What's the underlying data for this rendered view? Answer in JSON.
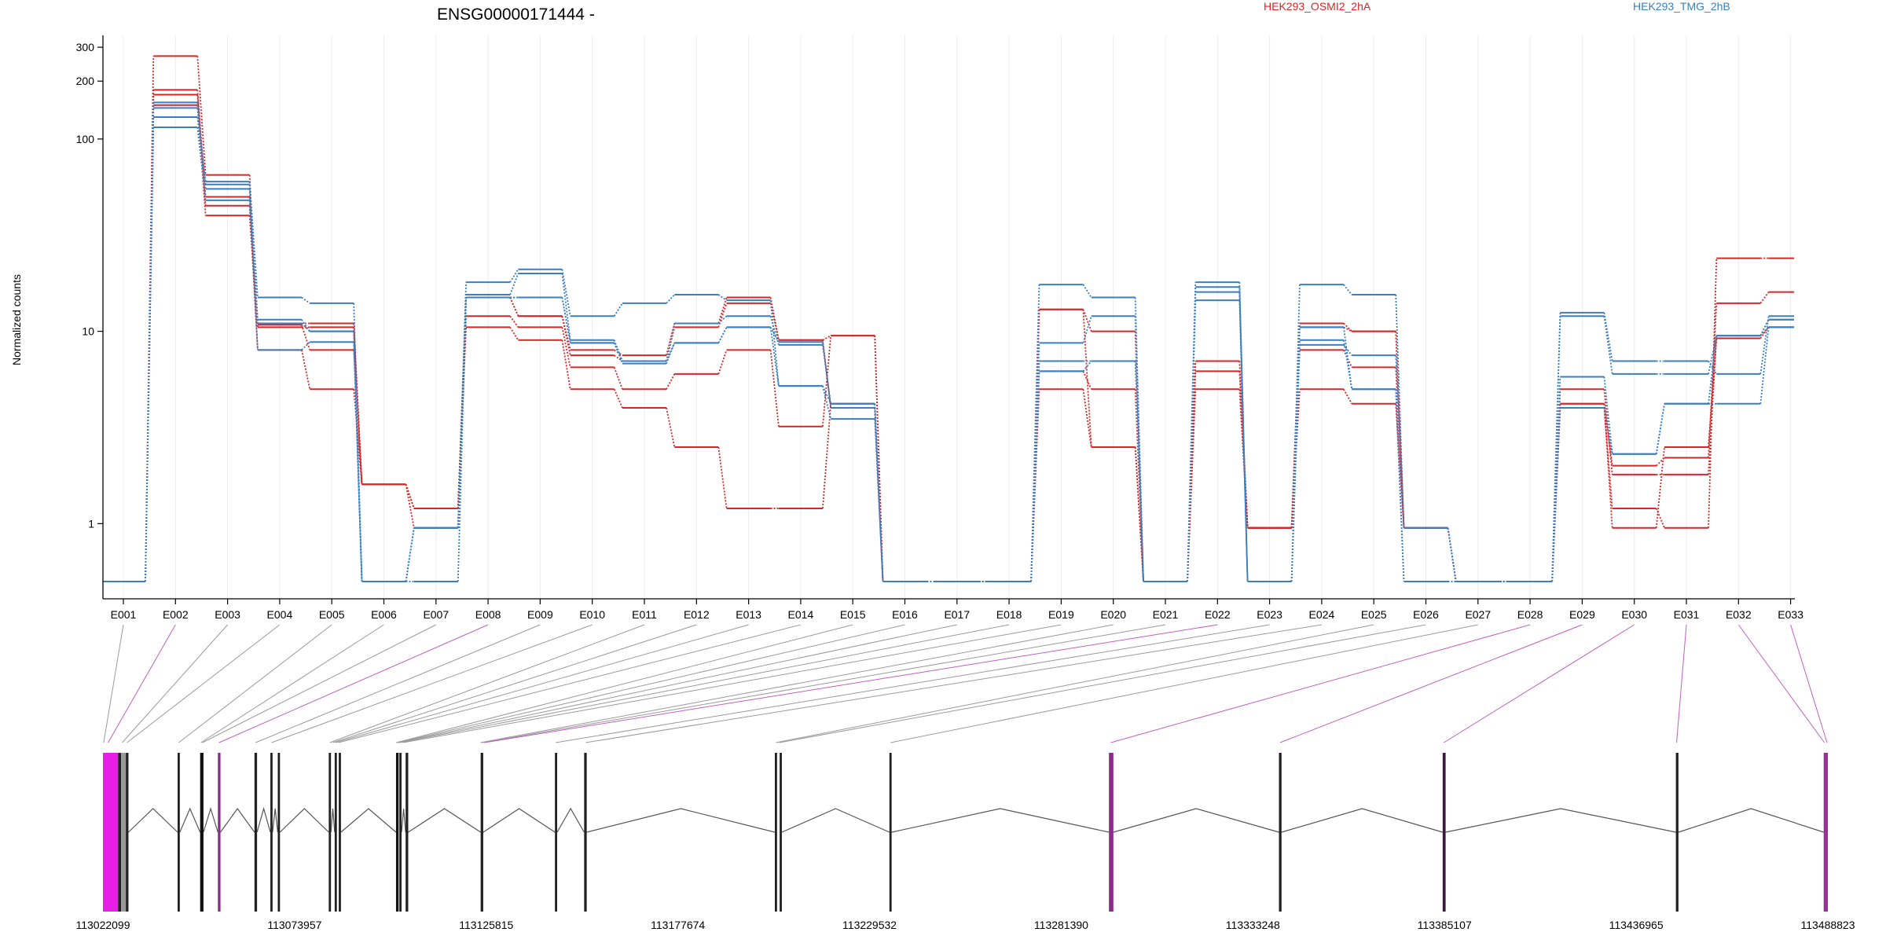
{
  "chart_data": {
    "type": "line",
    "title": "ENSG00000171444 -",
    "ylabel": "Normalized counts",
    "xlabel": "",
    "y_scale": "log",
    "ylim": [
      0.5,
      330
    ],
    "y_ticks": [
      1,
      10,
      100,
      200,
      300
    ],
    "y_tick_labels": [
      "1",
      "10",
      "100",
      "200",
      "300"
    ],
    "grid": "faint vertical lines at exon bins",
    "legend": [
      {
        "name": "HEK293_OSMI2_2hA",
        "color": "#d62728"
      },
      {
        "name": "HEK293_TMG_2hB",
        "color": "#3a7fc1"
      }
    ],
    "categories": [
      "E001",
      "E002",
      "E003",
      "E004",
      "E005",
      "E006",
      "E007",
      "E008",
      "E009",
      "E010",
      "E011",
      "E012",
      "E013",
      "E014",
      "E015",
      "E016",
      "E017",
      "E018",
      "E019",
      "E020",
      "E021",
      "E022",
      "E023",
      "E024",
      "E025",
      "E026",
      "E027",
      "E028",
      "E029",
      "E030",
      "E031",
      "E032",
      "E033"
    ],
    "series": [
      {
        "group": "HEK293_OSMI2_2hA",
        "color": "#d62728",
        "values": [
          0.5,
          270,
          65,
          11,
          11,
          1.6,
          1.2,
          15,
          12,
          8,
          7.5,
          11,
          15,
          9,
          9.5,
          0.5,
          0.5,
          0.5,
          13,
          10,
          0.5,
          7,
          0.95,
          11,
          10,
          0.95,
          0.5,
          0.5,
          4.2,
          2,
          2.2,
          14,
          16
        ]
      },
      {
        "group": "HEK293_OSMI2_2hA",
        "color": "#d62728",
        "values": [
          0.5,
          180,
          50,
          10.8,
          8,
          1.6,
          1.2,
          12,
          10.5,
          6.5,
          5,
          6,
          8,
          3.2,
          9.5,
          0.5,
          0.5,
          0.5,
          6.2,
          5,
          0.5,
          6.2,
          0.95,
          8,
          6.5,
          0.95,
          0.5,
          0.5,
          5,
          1.8,
          1.8,
          9.5,
          10.5
        ]
      },
      {
        "group": "HEK293_OSMI2_2hA",
        "color": "#d62728",
        "values": [
          0.5,
          170,
          45,
          8,
          5,
          1.6,
          1.2,
          10.5,
          9,
          5,
          4,
          2.5,
          1.2,
          1.2,
          4.2,
          0.5,
          0.5,
          0.5,
          5,
          2.5,
          0.5,
          5,
          0.95,
          5,
          4.2,
          0.95,
          0.5,
          0.5,
          4,
          1.2,
          0.95,
          24,
          24
        ]
      },
      {
        "group": "HEK293_OSMI2_2hA",
        "color": "#d62728",
        "values": [
          0.5,
          150,
          40,
          10.5,
          10.5,
          1.6,
          0.95,
          15,
          12,
          7.5,
          7,
          10.5,
          14,
          9,
          4,
          0.5,
          0.5,
          0.5,
          13,
          2.5,
          0.5,
          7,
          0.95,
          10.5,
          10,
          0.95,
          0.5,
          0.5,
          4.2,
          0.95,
          2.5,
          9.2,
          10.5
        ]
      },
      {
        "group": "HEK293_TMG_2hB",
        "color": "#3a7fc1",
        "values": [
          0.5,
          130,
          60,
          15,
          14,
          0.5,
          0.95,
          18,
          21,
          12,
          14,
          15.5,
          14.5,
          5.2,
          3.5,
          0.5,
          0.5,
          0.5,
          17.5,
          15,
          0.5,
          18,
          0.5,
          17.5,
          15.5,
          0.95,
          0.5,
          0.5,
          12.5,
          7,
          7,
          6,
          12
        ]
      },
      {
        "group": "HEK293_TMG_2hB",
        "color": "#3a7fc1",
        "values": [
          0.5,
          145,
          58,
          11.5,
          10,
          0.5,
          0.95,
          15.5,
          20,
          9,
          7,
          11,
          12,
          8.5,
          4.2,
          0.5,
          0.5,
          0.5,
          8.7,
          12,
          0.5,
          17,
          0.5,
          8.5,
          7.5,
          0.95,
          0.5,
          0.5,
          12,
          6,
          6,
          9.5,
          11.5
        ]
      },
      {
        "group": "HEK293_TMG_2hB",
        "color": "#3a7fc1",
        "values": [
          0.5,
          155,
          55,
          8,
          8.8,
          0.5,
          0.95,
          15,
          15,
          8.7,
          7,
          8.7,
          10.5,
          5.2,
          4.2,
          0.5,
          0.5,
          0.5,
          7,
          7,
          0.5,
          14.5,
          0.5,
          10.5,
          5,
          0.5,
          0.5,
          0.5,
          5.8,
          2.3,
          4.2,
          9.5,
          11.5
        ]
      },
      {
        "group": "HEK293_TMG_2hB",
        "color": "#3a7fc1",
        "values": [
          0.5,
          115,
          48,
          11,
          10,
          0.5,
          0.5,
          15,
          15,
          8.7,
          6.8,
          8.7,
          10.5,
          8.8,
          4,
          0.5,
          0.5,
          0.5,
          6.2,
          7,
          0.5,
          16,
          0.5,
          9,
          5,
          0.5,
          0.5,
          0.5,
          4,
          2.3,
          4.2,
          4.2,
          10.5
        ]
      }
    ],
    "gene_model": {
      "coordinate_labels": [
        "113022099",
        "113073957",
        "113125815",
        "113177674",
        "113229532",
        "113281390",
        "113333248",
        "113385107",
        "113436965",
        "113488823"
      ],
      "coordinate_ticks": [
        113022099,
        113073957,
        113125815,
        113177674,
        113229532,
        113281390,
        113333248,
        113385107,
        113436965,
        113488823
      ],
      "range": [
        113022099,
        113488823
      ],
      "exons": [
        {
          "start": 113022099,
          "end": 113026200,
          "color": "#e61ee6"
        },
        {
          "start": 113026200,
          "end": 113027000,
          "color": "#222222"
        },
        {
          "start": 113027000,
          "end": 113028300,
          "color": "#9a9a9a"
        },
        {
          "start": 113028300,
          "end": 113029000,
          "color": "#222222"
        },
        {
          "start": 113042300,
          "end": 113042900,
          "color": "#222222"
        },
        {
          "start": 113048400,
          "end": 113049300,
          "color": "#111111"
        },
        {
          "start": 113053200,
          "end": 113053900,
          "color": "#8b2a8b"
        },
        {
          "start": 113063100,
          "end": 113063800,
          "color": "#222222"
        },
        {
          "start": 113067400,
          "end": 113068000,
          "color": "#222222"
        },
        {
          "start": 113069400,
          "end": 113070000,
          "color": "#222222"
        },
        {
          "start": 113083200,
          "end": 113083800,
          "color": "#222222"
        },
        {
          "start": 113084800,
          "end": 113085400,
          "color": "#222222"
        },
        {
          "start": 113085900,
          "end": 113086500,
          "color": "#222222"
        },
        {
          "start": 113101400,
          "end": 113102100,
          "color": "#111111"
        },
        {
          "start": 113102300,
          "end": 113102900,
          "color": "#222222"
        },
        {
          "start": 113104000,
          "end": 113104700,
          "color": "#222222"
        },
        {
          "start": 113124300,
          "end": 113125000,
          "color": "#222222"
        },
        {
          "start": 113144400,
          "end": 113145000,
          "color": "#222222"
        },
        {
          "start": 113152300,
          "end": 113153000,
          "color": "#222222"
        },
        {
          "start": 113203900,
          "end": 113204500,
          "color": "#222222"
        },
        {
          "start": 113205200,
          "end": 113205800,
          "color": "#222222"
        },
        {
          "start": 113234900,
          "end": 113235500,
          "color": "#222222"
        },
        {
          "start": 113294300,
          "end": 113295500,
          "color": "#8b2a8b"
        },
        {
          "start": 113340300,
          "end": 113341000,
          "color": "#222222"
        },
        {
          "start": 113384600,
          "end": 113385400,
          "color": "#3a1a3a"
        },
        {
          "start": 113447700,
          "end": 113448400,
          "color": "#222222"
        },
        {
          "start": 113487700,
          "end": 113488823,
          "color": "#9b309b"
        }
      ],
      "bin_links": [
        {
          "bin": "E001",
          "pos": 113022300,
          "color": "#9a9a9a"
        },
        {
          "bin": "E002",
          "pos": 113023500,
          "color": "#c060c0"
        },
        {
          "bin": "E003",
          "pos": 113027300,
          "color": "#9a9a9a"
        },
        {
          "bin": "E004",
          "pos": 113028600,
          "color": "#9a9a9a"
        },
        {
          "bin": "E005",
          "pos": 113042600,
          "color": "#9a9a9a"
        },
        {
          "bin": "E006",
          "pos": 113048600,
          "color": "#9a9a9a"
        },
        {
          "bin": "E007",
          "pos": 113049000,
          "color": "#9a9a9a"
        },
        {
          "bin": "E008",
          "pos": 113053500,
          "color": "#c060c0"
        },
        {
          "bin": "E009",
          "pos": 113063400,
          "color": "#9a9a9a"
        },
        {
          "bin": "E010",
          "pos": 113067700,
          "color": "#9a9a9a"
        },
        {
          "bin": "E011",
          "pos": 113083500,
          "color": "#9a9a9a"
        },
        {
          "bin": "E012",
          "pos": 113084300,
          "color": "#9a9a9a"
        },
        {
          "bin": "E013",
          "pos": 113085000,
          "color": "#9a9a9a"
        },
        {
          "bin": "E014",
          "pos": 113085800,
          "color": "#9a9a9a"
        },
        {
          "bin": "E015",
          "pos": 113101400,
          "color": "#9a9a9a"
        },
        {
          "bin": "E016",
          "pos": 113101700,
          "color": "#9a9a9a"
        },
        {
          "bin": "E017",
          "pos": 113102000,
          "color": "#9a9a9a"
        },
        {
          "bin": "E018",
          "pos": 113102400,
          "color": "#9a9a9a"
        },
        {
          "bin": "E019",
          "pos": 113103300,
          "color": "#9a9a9a"
        },
        {
          "bin": "E020",
          "pos": 113124200,
          "color": "#9a9a9a"
        },
        {
          "bin": "E021",
          "pos": 113124800,
          "color": "#9a9a9a"
        },
        {
          "bin": "E022",
          "pos": 113125300,
          "color": "#c060c0"
        },
        {
          "bin": "E023",
          "pos": 113144600,
          "color": "#9a9a9a"
        },
        {
          "bin": "E024",
          "pos": 113152700,
          "color": "#9a9a9a"
        },
        {
          "bin": "E025",
          "pos": 113204200,
          "color": "#9a9a9a"
        },
        {
          "bin": "E026",
          "pos": 113205100,
          "color": "#9a9a9a"
        },
        {
          "bin": "E027",
          "pos": 113235200,
          "color": "#9a9a9a"
        },
        {
          "bin": "E028",
          "pos": 113294800,
          "color": "#c060c0"
        },
        {
          "bin": "E029",
          "pos": 113340600,
          "color": "#c060c0"
        },
        {
          "bin": "E030",
          "pos": 113384900,
          "color": "#c060c0"
        },
        {
          "bin": "E031",
          "pos": 113447900,
          "color": "#c060c0"
        },
        {
          "bin": "E032",
          "pos": 113487900,
          "color": "#c060c0"
        },
        {
          "bin": "E033",
          "pos": 113488600,
          "color": "#c060c0"
        }
      ]
    }
  }
}
